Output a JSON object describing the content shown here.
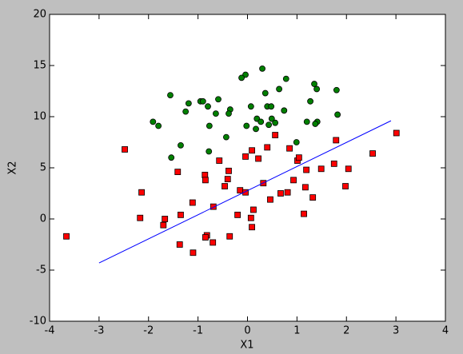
{
  "chart_data": {
    "type": "scatter",
    "xlabel": "X1",
    "ylabel": "X2",
    "xlim": [
      -4,
      4
    ],
    "ylim": [
      -10,
      20
    ],
    "xticks": [
      -4,
      -3,
      -2,
      -1,
      0,
      1,
      2,
      3,
      4
    ],
    "yticks": [
      -10,
      -5,
      0,
      5,
      10,
      15,
      20
    ],
    "series": [
      {
        "marker": "circle",
        "color": "#008000",
        "x": [
          0.3,
          -0.04,
          -0.12,
          0.78,
          0.36,
          1.35,
          1.4,
          0.64,
          1.8,
          -1.56,
          -0.59,
          -0.95,
          -1.19,
          -0.9,
          -0.8,
          -0.35,
          0.4,
          0.48,
          0.07,
          -1.25,
          -0.64,
          -0.38,
          0.74,
          0.49,
          0.19,
          0.56,
          0.27,
          -1.91,
          1.2,
          1.27,
          1.41,
          1.37,
          0.43,
          -1.8,
          -0.77,
          0.17,
          -0.02,
          -0.43,
          0.99,
          -1.35,
          -0.78,
          -1.54,
          1.82
        ],
        "values": [
          14.7,
          14.1,
          13.8,
          13.7,
          12.3,
          13.2,
          12.7,
          12.7,
          12.6,
          12.1,
          11.7,
          11.5,
          11.3,
          11.5,
          11.0,
          10.7,
          11.0,
          11.0,
          11.0,
          10.5,
          10.3,
          10.3,
          10.6,
          9.8,
          9.8,
          9.4,
          9.5,
          9.5,
          9.5,
          11.5,
          9.5,
          9.3,
          9.2,
          9.1,
          9.1,
          8.8,
          9.1,
          8.0,
          7.5,
          7.2,
          6.6,
          6.0,
          10.2
        ]
      },
      {
        "marker": "square",
        "color": "#ff0000",
        "x": [
          -3.66,
          -2.48,
          -2.14,
          -2.17,
          -1.67,
          -1.7,
          -1.41,
          -1.35,
          -1.37,
          -1.11,
          -1.1,
          -0.86,
          -0.85,
          -0.82,
          -0.85,
          -0.7,
          -0.69,
          -0.57,
          -0.46,
          -0.38,
          -0.4,
          -0.36,
          -0.2,
          -0.15,
          -0.04,
          -0.04,
          0.09,
          0.07,
          0.09,
          0.12,
          0.22,
          0.32,
          0.4,
          0.46,
          0.56,
          0.67,
          0.81,
          0.85,
          0.93,
          1.01,
          1.04,
          1.14,
          1.17,
          1.19,
          1.32,
          1.49,
          1.75,
          1.79,
          1.98,
          2.04,
          2.53,
          3.01
        ],
        "values": [
          -1.7,
          6.8,
          2.6,
          0.1,
          0.0,
          -0.6,
          4.6,
          0.4,
          -2.5,
          1.6,
          -3.3,
          4.3,
          3.8,
          -1.6,
          -1.8,
          -2.3,
          1.2,
          5.7,
          3.2,
          4.7,
          3.9,
          -1.7,
          0.4,
          2.8,
          2.6,
          6.1,
          6.7,
          0.1,
          -0.8,
          0.9,
          5.9,
          3.5,
          7.0,
          1.9,
          8.2,
          2.5,
          2.6,
          6.9,
          3.8,
          5.7,
          6.0,
          0.5,
          3.1,
          4.8,
          2.1,
          4.9,
          5.4,
          7.7,
          3.2,
          4.9,
          6.4,
          8.4
        ]
      },
      {
        "marker": "line",
        "color": "#0000ff",
        "x": [
          -3,
          2.9
        ],
        "values": [
          -4.3,
          9.6
        ]
      }
    ]
  }
}
